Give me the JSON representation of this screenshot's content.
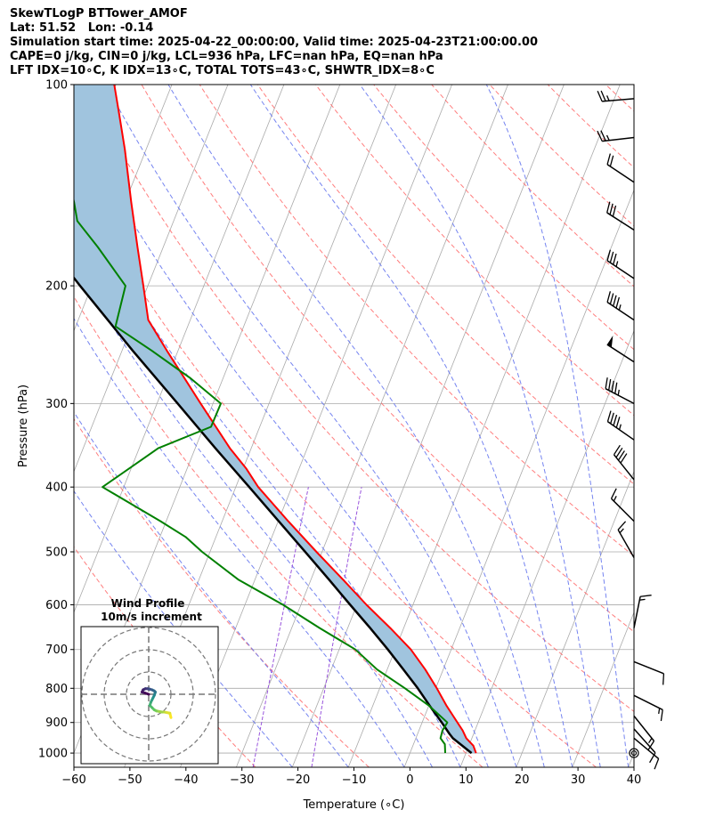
{
  "header": {
    "lines": [
      "SkewTLogP BTTower_AMOF",
      "Lat: 51.52   Lon: -0.14",
      "Simulation start time: 2025-04-22_00:00:00, Valid time: 2025-04-23T21:00:00.00",
      "CAPE=0 j/kg, CIN=0 j/kg, LCL=936 hPa, LFC=nan hPa, EQ=nan hPa",
      "LFT IDX=10∘C, K IDX=13∘C, TOTAL TOTS=43∘C, SHWTR_IDX=8∘C"
    ]
  },
  "chart_data": {
    "type": "line",
    "subtype": "skewt-logp",
    "xlabel": "Temperature (∘C)",
    "ylabel": "Pressure (hPa)",
    "xlim": [
      -60,
      40
    ],
    "ylim": [
      1050,
      100
    ],
    "y_scale": "log",
    "grid": true,
    "x_ticks": [
      "−60",
      "−50",
      "−40",
      "−30",
      "−20",
      "−10",
      "0",
      "10",
      "20",
      "30",
      "40"
    ],
    "y_ticks": [
      "100",
      "200",
      "300",
      "400",
      "500",
      "600",
      "700",
      "800",
      "900",
      "1000"
    ],
    "y_tick_values": [
      100,
      200,
      300,
      400,
      500,
      600,
      700,
      800,
      900,
      1000
    ],
    "colors": {
      "temperature": "#ff0000",
      "dewpoint": "#008000",
      "parcel": "#000000",
      "cape_fill": "#a0c4de",
      "dry_adiabat": "#ff6666",
      "moist_adiabat": "#6677ee",
      "mixing_ratio": "#9955dd",
      "isotherm": "#aaaaaa"
    },
    "series": [
      {
        "key": "temperature",
        "p": [
          1000,
          975,
          950,
          925,
          900,
          850,
          800,
          750,
          700,
          650,
          600,
          550,
          500,
          450,
          400,
          375,
          350,
          300,
          250,
          225,
          200,
          175,
          150,
          125,
          110,
          100
        ],
        "t": [
          11.8,
          10.8,
          9.0,
          7.8,
          6.3,
          3.2,
          0.2,
          -3.2,
          -7.2,
          -12.4,
          -18.3,
          -24.3,
          -31.0,
          -38.2,
          -46.0,
          -49.5,
          -53.8,
          -62.2,
          -72.0,
          -77.5,
          -80.8,
          -84.6,
          -88.9,
          -93.8,
          -97.5,
          -100.3
        ]
      },
      {
        "key": "dewpoint",
        "p": [
          1000,
          970,
          950,
          925,
          900,
          850,
          800,
          750,
          700,
          650,
          600,
          550,
          500,
          475,
          450,
          400,
          350,
          325,
          300,
          275,
          250,
          230,
          200,
          175,
          160,
          150,
          125,
          110,
          100
        ],
        "t": [
          6.3,
          5.6,
          4.4,
          4.2,
          4.5,
          0.1,
          -5.5,
          -11.8,
          -17.1,
          -25.0,
          -33.2,
          -43.0,
          -51.4,
          -55.4,
          -61.0,
          -73.8,
          -66.6,
          -58.7,
          -58.6,
          -65.8,
          -74.7,
          -82.9,
          -84.0,
          -91.7,
          -97.2,
          -99.1,
          -104.9,
          -109.1,
          -112.3
        ]
      },
      {
        "key": "parcel",
        "p": [
          1000,
          950,
          936,
          900,
          850,
          800,
          750,
          700,
          650,
          600,
          550,
          500,
          450,
          400,
          350,
          300,
          250,
          200,
          150,
          125,
          100
        ],
        "t": [
          11.0,
          6.6,
          5.7,
          3.5,
          0.2,
          -3.2,
          -7.1,
          -11.3,
          -16.0,
          -21.2,
          -26.8,
          -33.0,
          -39.9,
          -47.6,
          -56.4,
          -66.3,
          -78.1,
          -92.1,
          -109.7,
          -120.3,
          -132.9
        ]
      }
    ],
    "cape_cin_fill": "between temperature and parcel",
    "wind_barbs": [
      {
        "p": 1000,
        "u_kt": 0,
        "v_kt": 0
      },
      {
        "p": 950,
        "u_kt": -6,
        "v_kt": 5
      },
      {
        "p": 920,
        "u_kt": -8,
        "v_kt": 9
      },
      {
        "p": 880,
        "u_kt": -8,
        "v_kt": 10
      },
      {
        "p": 820,
        "u_kt": -12,
        "v_kt": 6
      },
      {
        "p": 730,
        "u_kt": -10,
        "v_kt": 4
      },
      {
        "p": 650,
        "u_kt": -3,
        "v_kt": -15
      },
      {
        "p": 510,
        "u_kt": 8,
        "v_kt": -14
      },
      {
        "p": 450,
        "u_kt": 12,
        "v_kt": -12
      },
      {
        "p": 390,
        "u_kt": 24,
        "v_kt": -30
      },
      {
        "p": 340,
        "u_kt": 36,
        "v_kt": -25
      },
      {
        "p": 300,
        "u_kt": 42,
        "v_kt": -22
      },
      {
        "p": 260,
        "u_kt": 40,
        "v_kt": -26
      },
      {
        "p": 225,
        "u_kt": 36,
        "v_kt": -24
      },
      {
        "p": 195,
        "u_kt": 30,
        "v_kt": -20
      },
      {
        "p": 165,
        "u_kt": 25,
        "v_kt": -16
      },
      {
        "p": 140,
        "u_kt": 18,
        "v_kt": -12
      },
      {
        "p": 120,
        "u_kt": 26,
        "v_kt": 3
      },
      {
        "p": 105,
        "u_kt": 24,
        "v_kt": 2
      }
    ],
    "hodograph": {
      "title": "Wind Profile",
      "subtitle": "10m/s increment",
      "rings_ms": [
        10,
        20,
        30
      ],
      "u_ms": [
        10,
        9.5,
        7,
        6,
        3.5,
        2.5,
        1.5,
        0.5,
        1,
        1.5,
        2,
        2.5,
        3,
        2.5,
        1.5,
        0.5,
        -0.5,
        -1.5,
        -2.5,
        -3,
        -1.5,
        0
      ],
      "v_ms": [
        -10.5,
        -8.5,
        -8,
        -8,
        -7.5,
        -7,
        -6,
        -5,
        -3.5,
        -2.5,
        -1.5,
        -0.5,
        1,
        1.5,
        2,
        2.3,
        2.5,
        2.5,
        2,
        1,
        0.5,
        0
      ],
      "colormap": [
        "#440154",
        "#3b528b",
        "#21918c",
        "#5ec962",
        "#fde725"
      ]
    }
  }
}
